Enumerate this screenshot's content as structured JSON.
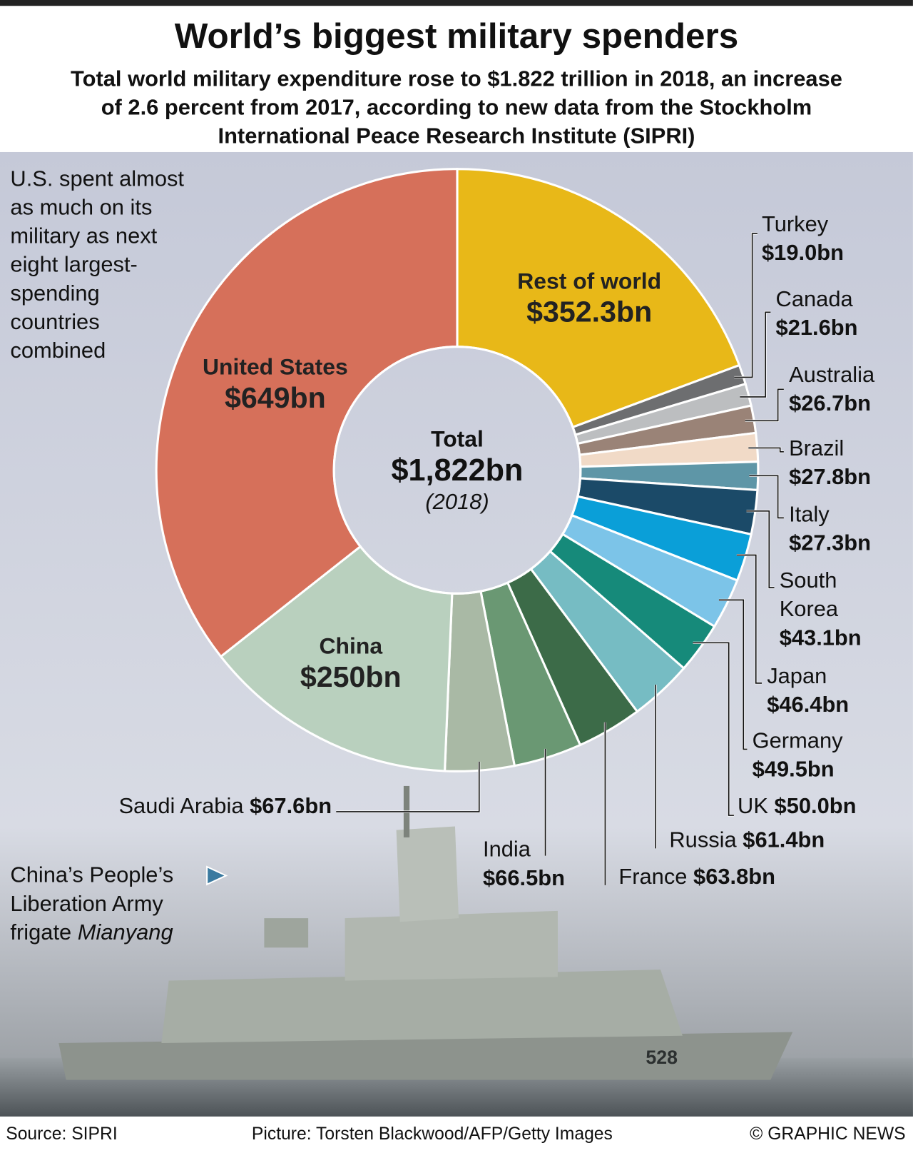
{
  "chart_data": {
    "type": "donut",
    "title": "World’s biggest military spenders",
    "subtitle_lines": [
      "Total world military expenditure rose to $1.822 trillion in 2018, an increase",
      "of 2.6 percent from 2017, according to new data from the Stockholm",
      "International Peace Research Institute (SIPRI)"
    ],
    "categories": [
      "Rest of world",
      "Turkey",
      "Canada",
      "Australia",
      "Brazil",
      "Italy",
      "South Korea",
      "Japan",
      "Germany",
      "UK",
      "Russia",
      "France",
      "India",
      "Saudi Arabia",
      "China",
      "United States"
    ],
    "values": [
      352.3,
      19.0,
      21.6,
      26.7,
      27.8,
      27.3,
      43.1,
      46.4,
      49.5,
      50.0,
      61.4,
      63.8,
      66.5,
      67.6,
      250,
      649
    ],
    "value_labels": [
      "$352.3bn",
      "$19.0bn",
      "$21.6bn",
      "$26.7bn",
      "$27.8bn",
      "$27.3bn",
      "$43.1bn",
      "$46.4bn",
      "$49.5bn",
      "$50.0bn",
      "$61.4bn",
      "$63.8bn",
      "$66.5bn",
      "$67.6bn",
      "$250bn",
      "$649bn"
    ],
    "colors": [
      "#e8b818",
      "#6d6e70",
      "#bcbec0",
      "#9a8377",
      "#f1dac7",
      "#5e96a7",
      "#1b4a68",
      "#0a9fd8",
      "#7cc4e8",
      "#168a7a",
      "#76bcc3",
      "#3c6b48",
      "#6a9873",
      "#a9b9a5",
      "#b9d0be",
      "#d6705a"
    ],
    "center_label": "Total",
    "center_value": "$1,822bn",
    "center_note": "(2018)",
    "annotation_lines": [
      "U.S. spent almost",
      "as much on its",
      "military as next",
      "eight largest-",
      "spending",
      "countries",
      "combined"
    ],
    "photo_caption": {
      "lines": [
        "China’s People’s",
        "Liberation Army"
      ],
      "last_line": "frigate",
      "ship_name": "Mianyang"
    },
    "source": "Source: SIPRI",
    "credit": "Picture: Torsten Blackwood/AFP/Getty Images",
    "copyright": "© GRAPHIC NEWS"
  }
}
